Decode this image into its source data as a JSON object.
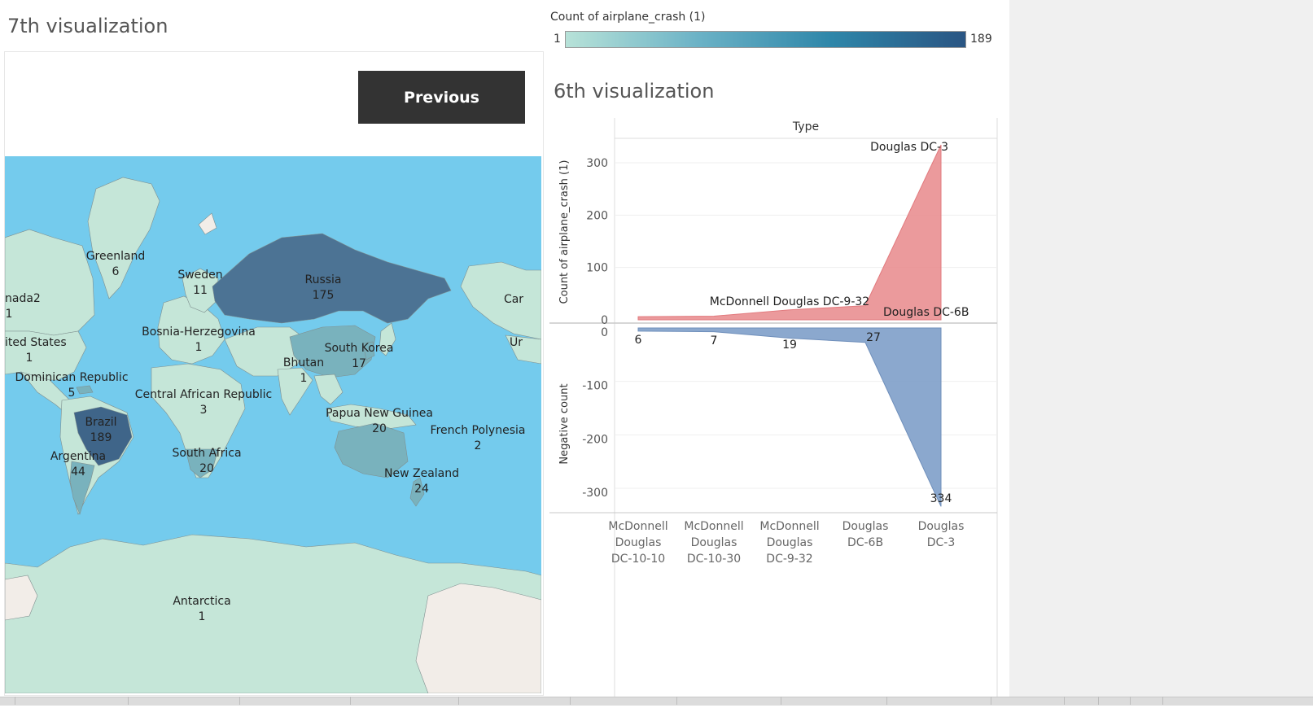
{
  "viz7": {
    "title": "7th visualization",
    "previous_button": "Previous",
    "map_labels": [
      {
        "name": "Greenland",
        "count": "6"
      },
      {
        "name": "Sweden",
        "count": "11"
      },
      {
        "name": "Russia",
        "count": "175"
      },
      {
        "name": "nada2",
        "count": "1"
      },
      {
        "name": "ited States",
        "count": "1"
      },
      {
        "name": "Bosnia-Herzegovina",
        "count": "1"
      },
      {
        "name": "South Korea",
        "count": "17"
      },
      {
        "name": "Bhutan",
        "count": "1"
      },
      {
        "name": "Dominican Republic",
        "count": "5"
      },
      {
        "name": "Central African Republic",
        "count": "3"
      },
      {
        "name": "Brazil",
        "count": "189"
      },
      {
        "name": "Papua New Guinea",
        "count": "20"
      },
      {
        "name": "French Polynesia",
        "count": "2"
      },
      {
        "name": "Argentina",
        "count": "44"
      },
      {
        "name": "South Africa",
        "count": "20"
      },
      {
        "name": "New Zealand",
        "count": "24"
      },
      {
        "name": "Antarctica",
        "count": "1"
      },
      {
        "name": "Car",
        "count": ""
      },
      {
        "name": "Ur",
        "count": ""
      }
    ],
    "colors": {
      "ocean": "#74cbed",
      "low": "#c5e6d8",
      "mid": "#79b2bd",
      "high": "#4c7394",
      "top": "#3f6589",
      "no_data": "#f2ede8"
    }
  },
  "legend": {
    "title": "Count of airplane_crash (1)",
    "min": "1",
    "max": "189"
  },
  "viz6": {
    "title": "6th visualization"
  },
  "chart_data": {
    "type": "area",
    "header": "Type",
    "categories": [
      "McDonnell Douglas DC-10-10",
      "McDonnell Douglas DC-10-30",
      "McDonnell Douglas DC-9-32",
      "Douglas DC-6B",
      "Douglas DC-3"
    ],
    "category_labels": [
      [
        "McDonnell",
        "Douglas",
        "DC-10-10"
      ],
      [
        "McDonnell",
        "Douglas",
        "DC-10-30"
      ],
      [
        "McDonnell",
        "Douglas",
        "DC-9-32"
      ],
      [
        "Douglas",
        "DC-6B"
      ],
      [
        "Douglas",
        "DC-3"
      ]
    ],
    "series": [
      {
        "name": "Count of airplane_crash (1)",
        "values": [
          6,
          7,
          19,
          27,
          334
        ],
        "color": "#e8888b"
      },
      {
        "name": "Negative count",
        "values": [
          -6,
          -7,
          -19,
          -27,
          -334
        ],
        "color": "#7e9fc9"
      }
    ],
    "top_panel": {
      "ylabel": "Count of airplane_crash (1)",
      "ylim": [
        0,
        330
      ],
      "ticks": [
        "300",
        "200",
        "100",
        "0"
      ]
    },
    "bottom_panel": {
      "ylabel": "Negative count",
      "ylim": [
        -340,
        0
      ],
      "ticks": [
        "0",
        "-100",
        "-200",
        "-300"
      ]
    },
    "annotations": {
      "top": [
        "Douglas DC-3",
        "McDonnell Douglas DC-9-32",
        "Douglas DC-6B"
      ],
      "bottom": [
        "6",
        "7",
        "19",
        "27",
        "334"
      ]
    },
    "grid": true
  }
}
